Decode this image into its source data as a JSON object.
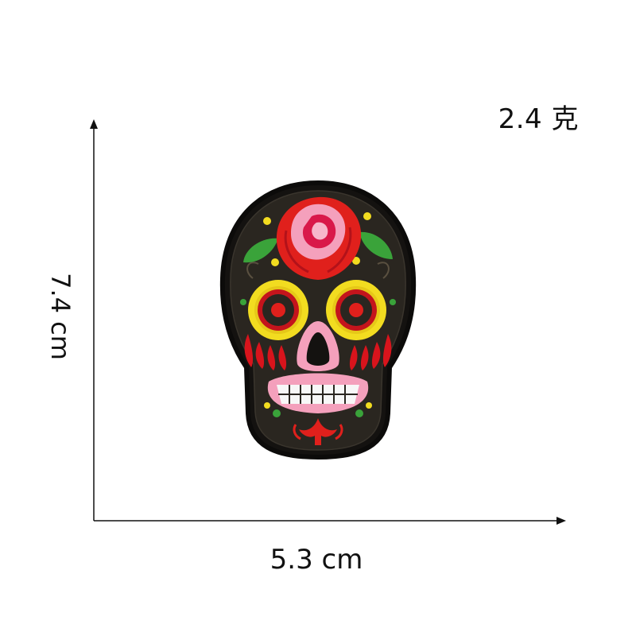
{
  "weight": "2.4 克",
  "height": "7.4 cm",
  "width": "5.3 cm",
  "colors": {
    "patch_black": "#1c1a18",
    "rose_red": "#e0201c",
    "rose_pink": "#f4a0bc",
    "leaf_green": "#3aa33a",
    "eye_yellow": "#f2dc20",
    "teeth_white": "#f7f7f7"
  }
}
